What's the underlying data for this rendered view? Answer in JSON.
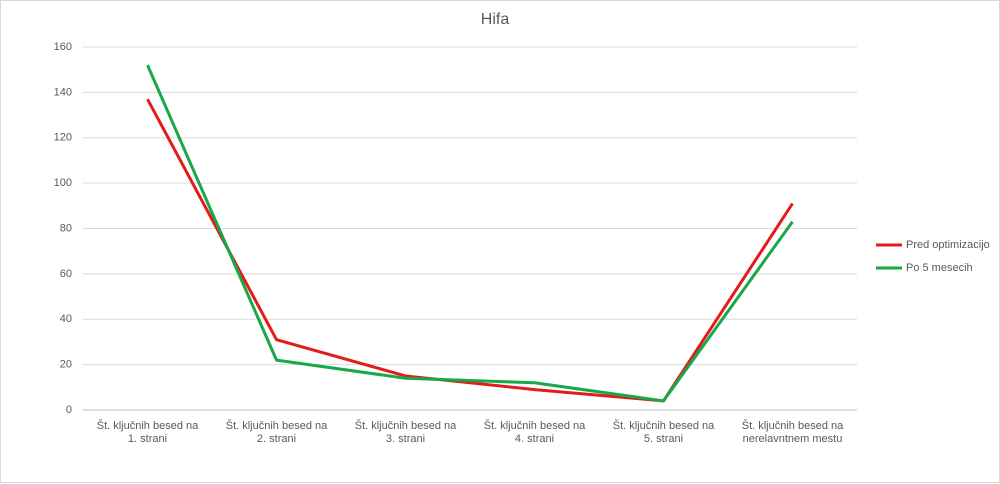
{
  "chart_data": {
    "type": "line",
    "title": "Hifa",
    "categories": [
      "Št. ključnih besed na 1. strani",
      "Št. ključnih besed na 2. strani",
      "Št. ključnih besed na 3. strani",
      "Št. ključnih besed na 4. strani",
      "Št. ključnih besed na 5. strani",
      "Št. ključnih besed na nerelavntnem mestu"
    ],
    "series": [
      {
        "name": "Pred optimizacijo",
        "color": "#e31b1b",
        "values": [
          137,
          31,
          15,
          9,
          4,
          91
        ]
      },
      {
        "name": "Po 5 mesecih",
        "color": "#17a84a",
        "values": [
          152,
          22,
          14,
          12,
          4,
          83
        ]
      }
    ],
    "ylim": [
      0,
      160
    ],
    "yticks": [
      0,
      20,
      40,
      60,
      80,
      100,
      120,
      140,
      160
    ],
    "grid": true,
    "legend": "right"
  }
}
